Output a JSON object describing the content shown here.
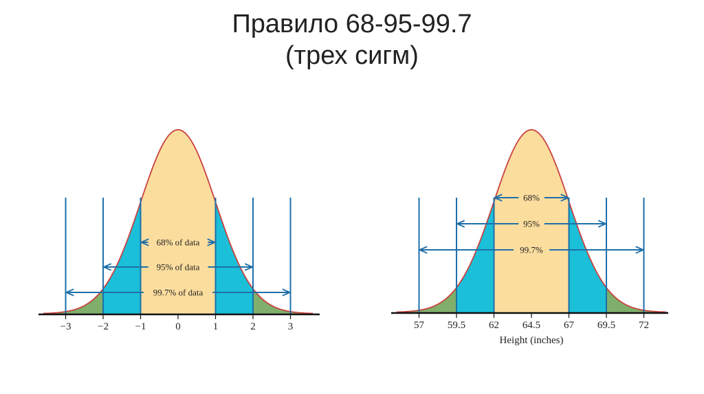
{
  "slide": {
    "title_line1": "Правило 68-95-99.7",
    "title_line2": "(трех сигм)"
  },
  "colors": {
    "center_fill": "#FBDD9E",
    "mid_fill": "#1BBFD8",
    "tail_fill": "#7FAF6A",
    "curve": "#C9413F",
    "guide": "#1E6FA8",
    "axis": "#111111"
  },
  "chart_data": [
    {
      "type": "area",
      "curve": "normal density",
      "mean": 0,
      "sd": 1,
      "x_ticks": [
        "−3",
        "−2",
        "−1",
        "0",
        "1",
        "2",
        "3"
      ],
      "xlabel": "",
      "bands": [
        {
          "label": "68% of data",
          "from": -1,
          "to": 1
        },
        {
          "label": "95% of data",
          "from": -2,
          "to": 2
        },
        {
          "label": "99.7% of data",
          "from": -3,
          "to": 3
        }
      ]
    },
    {
      "type": "area",
      "curve": "normal density",
      "mean": 64.5,
      "sd": 2.5,
      "x_ticks": [
        "57",
        "59.5",
        "62",
        "64.5",
        "67",
        "69.5",
        "72"
      ],
      "xlabel": "Height (inches)",
      "bands": [
        {
          "label": "68%",
          "from": 62,
          "to": 67
        },
        {
          "label": "95%",
          "from": 59.5,
          "to": 69.5
        },
        {
          "label": "99.7%",
          "from": 57,
          "to": 72
        }
      ]
    }
  ]
}
